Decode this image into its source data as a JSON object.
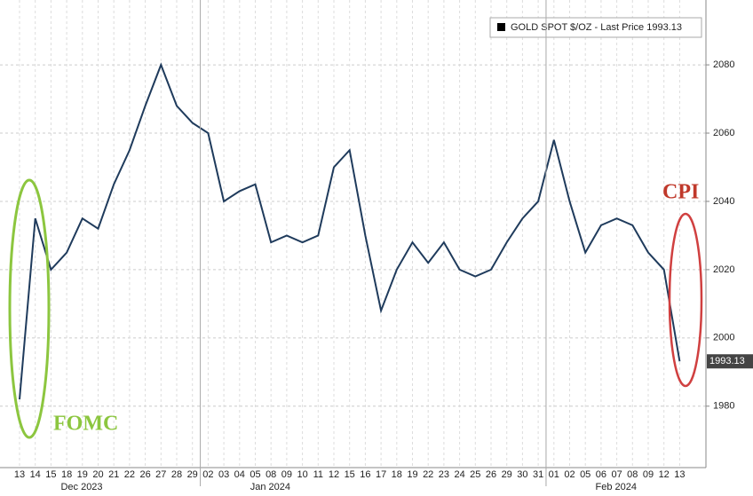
{
  "chart_data": {
    "type": "line",
    "categories": [
      "13",
      "14",
      "15",
      "18",
      "19",
      "20",
      "21",
      "22",
      "26",
      "27",
      "28",
      "29",
      "02",
      "03",
      "04",
      "05",
      "08",
      "09",
      "10",
      "11",
      "12",
      "15",
      "16",
      "17",
      "18",
      "19",
      "22",
      "23",
      "24",
      "25",
      "26",
      "29",
      "30",
      "31",
      "01",
      "02",
      "05",
      "06",
      "07",
      "08",
      "09",
      "12",
      "13"
    ],
    "months": [
      {
        "label": "Dec 2023",
        "span": 12
      },
      {
        "label": "Jan 2024",
        "span": 22
      },
      {
        "label": "Feb 2024",
        "span": 9
      }
    ],
    "series": [
      {
        "name": "GOLD SPOT $/OZ - Last Price 1993.13",
        "color": "#1f3b5c",
        "values": [
          1982,
          2035,
          2020,
          2025,
          2035,
          2032,
          2045,
          2055,
          2068,
          2080,
          2068,
          2063,
          2060,
          2040,
          2043,
          2045,
          2028,
          2030,
          2028,
          2030,
          2050,
          2055,
          2030,
          2008,
          2020,
          2028,
          2022,
          2028,
          2020,
          2018,
          2020,
          2028,
          2035,
          2040,
          2058,
          2040,
          2025,
          2033,
          2035,
          2033,
          2025,
          2020,
          1993.13
        ]
      }
    ],
    "ylim": [
      1962,
      2099
    ],
    "yticks": [
      1980,
      2000,
      2020,
      2040,
      2060,
      2080
    ],
    "grid": true,
    "annotations": [
      {
        "text": "FOMC",
        "color": "#8cc63f"
      },
      {
        "text": "CPI",
        "color": "#c0392b"
      }
    ]
  }
}
